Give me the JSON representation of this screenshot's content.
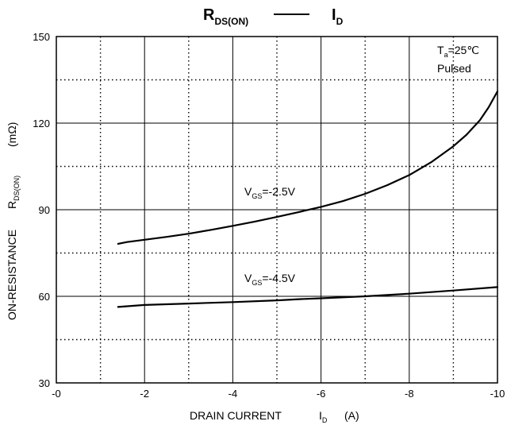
{
  "chart_data": {
    "type": "line",
    "title": {
      "left_main": "R",
      "left_sub": "DS(ON)",
      "dash": "—",
      "right_main": "I",
      "right_sub": "D"
    },
    "xlabel": {
      "main": "DRAIN CURRENT",
      "symbol": "I",
      "symbol_sub": "D",
      "unit": "(A)"
    },
    "ylabel": {
      "main": "ON-RESISTANCE",
      "symbol": "R",
      "symbol_sub": "DS(ON)",
      "unit": "(mΩ)"
    },
    "xlim": [
      0,
      -10
    ],
    "ylim": [
      30,
      150
    ],
    "x_ticks": [
      "-0",
      "-2",
      "-4",
      "-6",
      "-8",
      "-10"
    ],
    "y_ticks": [
      "30",
      "60",
      "90",
      "120",
      "150"
    ],
    "grid": "solid major, dotted minor",
    "conditions": {
      "ta_main": "T",
      "ta_sub": "a",
      "ta_value": "=25℃",
      "pulsed": "Pulsed"
    },
    "series": [
      {
        "name": "VGS=-2.5V",
        "label_main": "V",
        "label_sub": "GS",
        "label_value": "=-2.5V",
        "color": "#000000",
        "x": [
          -1.4,
          -1.6,
          -2,
          -2.5,
          -3,
          -3.5,
          -4,
          -4.5,
          -5,
          -5.5,
          -6,
          -6.5,
          -7,
          -7.5,
          -8,
          -8.5,
          -9,
          -9.3,
          -9.6,
          -9.8,
          -10
        ],
        "y": [
          78.2,
          78.8,
          79.6,
          80.6,
          81.7,
          83,
          84.4,
          85.9,
          87.5,
          89.2,
          91,
          93,
          95.5,
          98.5,
          102,
          106.5,
          112,
          116,
          121,
          125.5,
          131
        ]
      },
      {
        "name": "VGS=-4.5V",
        "label_main": "V",
        "label_sub": "GS",
        "label_value": "=-4.5V",
        "color": "#000000",
        "x": [
          -1.4,
          -2,
          -3,
          -4,
          -5,
          -5.5,
          -6,
          -7,
          -8,
          -9,
          -10
        ],
        "y": [
          56.3,
          57,
          57.5,
          58,
          58.6,
          59,
          59.3,
          60,
          60.9,
          62,
          63.2
        ]
      }
    ]
  }
}
